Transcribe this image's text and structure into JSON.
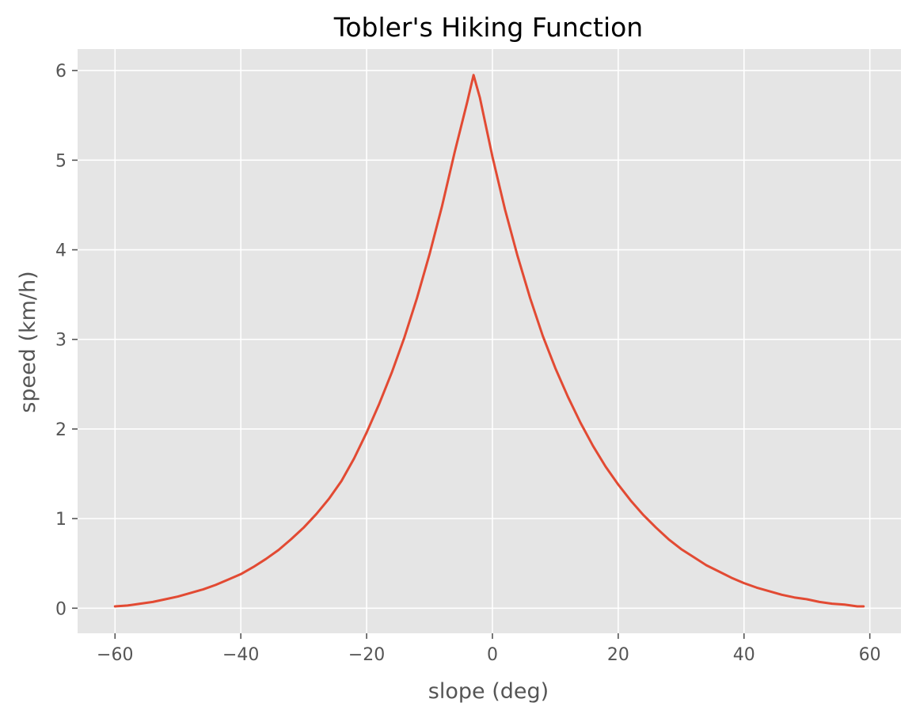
{
  "chart_data": {
    "type": "line",
    "title": "Tobler's Hiking Function",
    "xlabel": "slope (deg)",
    "ylabel": "speed (km/h)",
    "xlim": [
      -65.95,
      64.95
    ],
    "ylim": [
      -0.28,
      6.24
    ],
    "xticks": [
      -60,
      -40,
      -20,
      0,
      20,
      40,
      60
    ],
    "yticks": [
      0,
      1,
      2,
      3,
      4,
      5,
      6
    ],
    "xtick_labels": [
      "−60",
      "−40",
      "−20",
      "0",
      "20",
      "40",
      "60"
    ],
    "ytick_labels": [
      "0",
      "1",
      "2",
      "3",
      "4",
      "5",
      "6"
    ],
    "grid": true,
    "legend": "none",
    "colors": {
      "plot_background": "#e5e5e5",
      "grid": "#ffffff",
      "line": "#e24a33",
      "text": "#555555"
    },
    "series": [
      {
        "x": [
          -60,
          -58,
          -56,
          -54,
          -52,
          -50,
          -48,
          -46,
          -44,
          -42,
          -40,
          -38,
          -36,
          -34,
          -32,
          -30,
          -28,
          -26,
          -24,
          -22,
          -20,
          -18,
          -16,
          -14,
          -12,
          -10,
          -8,
          -6,
          -4,
          -3,
          -2,
          0,
          2,
          4,
          6,
          8,
          10,
          12,
          14,
          16,
          18,
          20,
          22,
          24,
          26,
          28,
          30,
          32,
          34,
          36,
          38,
          40,
          42,
          44,
          46,
          48,
          50,
          52,
          54,
          56,
          58,
          59
        ],
        "y": [
          0.02,
          0.03,
          0.05,
          0.07,
          0.1,
          0.13,
          0.17,
          0.21,
          0.26,
          0.32,
          0.38,
          0.46,
          0.55,
          0.65,
          0.77,
          0.9,
          1.05,
          1.22,
          1.42,
          1.67,
          1.96,
          2.28,
          2.63,
          3.02,
          3.46,
          3.95,
          4.49,
          5.09,
          5.65,
          5.95,
          5.7,
          5.04,
          4.45,
          3.93,
          3.46,
          3.04,
          2.68,
          2.36,
          2.07,
          1.81,
          1.58,
          1.38,
          1.2,
          1.04,
          0.9,
          0.77,
          0.66,
          0.57,
          0.48,
          0.41,
          0.34,
          0.28,
          0.23,
          0.19,
          0.15,
          0.12,
          0.1,
          0.07,
          0.05,
          0.04,
          0.02,
          0.02
        ]
      }
    ]
  }
}
